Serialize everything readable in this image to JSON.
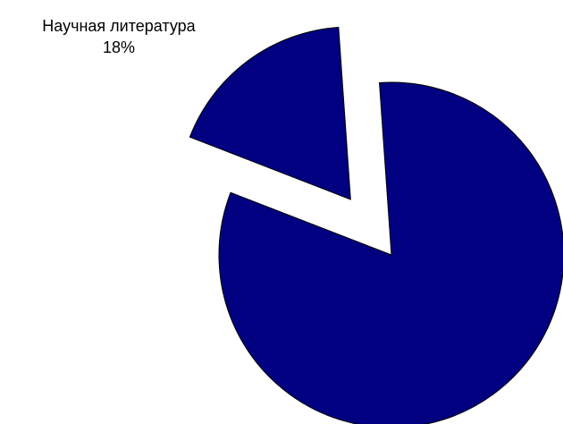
{
  "chart_data": {
    "type": "pie",
    "title": "",
    "slices": [
      {
        "name": "Научная литература",
        "value": 18,
        "percent_label": "18%",
        "exploded": true,
        "show_label": true
      },
      {
        "name": "",
        "value": 82,
        "percent_label": "",
        "exploded": false,
        "show_label": false
      }
    ],
    "legend": "none",
    "colors": {
      "fill": "#000080",
      "stroke": "#000000",
      "background": "#ffffff"
    }
  }
}
